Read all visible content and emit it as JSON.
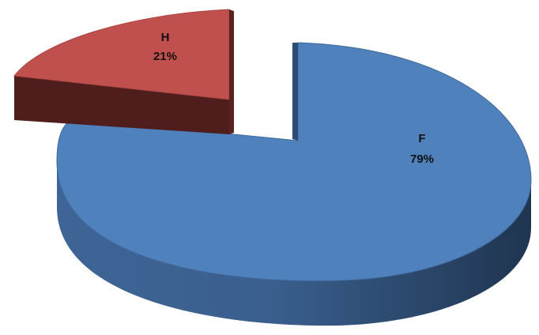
{
  "chart_data": {
    "type": "pie",
    "style": "3d-exploded",
    "slices": [
      {
        "name": "F",
        "value": 79,
        "value_label": "79%",
        "color": "#4f81bd"
      },
      {
        "name": "H",
        "value": 21,
        "value_label": "21%",
        "color": "#c0504d"
      }
    ],
    "legend": "none"
  }
}
